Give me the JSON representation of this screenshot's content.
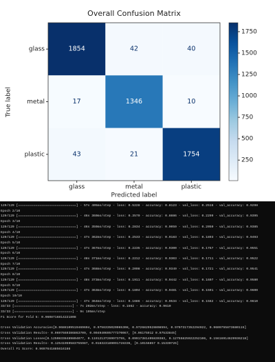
{
  "chart_data": {
    "type": "heatmap",
    "title": "Overall Confusion Matrix",
    "x_label": "Predicted label",
    "y_label": "True label",
    "x_categories": [
      "glass",
      "metal",
      "plastic"
    ],
    "y_categories": [
      "glass",
      "metal",
      "plastic"
    ],
    "values": [
      [
        1854,
        42,
        40
      ],
      [
        17,
        1346,
        10
      ],
      [
        43,
        21,
        1754
      ]
    ],
    "cmap": "Blues",
    "clim": [
      10,
      1854
    ],
    "colorbar_ticks": [
      250,
      500,
      750,
      1000,
      1250,
      1500,
      1750
    ]
  },
  "console": {
    "lines": [
      "129/129 [==============================] - 57s 405ms/step - loss: 0.5228 - accuracy: 0.8123 - val_loss: 0.2516 - val_accuracy: 0.9298",
      "Epoch 2/10",
      "129/129 [==============================] - 46s 360ms/step - loss: 0.3570 - accuracy: 0.8886 - val_loss: 0.2299 - val_accuracy: 0.9395",
      "Epoch 3/10",
      "129/129 [==============================] - 46s 359ms/step - loss: 0.2834 - accuracy: 0.9059 - val_loss: 0.2050 - val_accuracy: 0.9385",
      "Epoch 4/10",
      "129/129 [==============================] - 47s 362ms/step - loss: 0.2533 - accuracy: 0.9183 - val_loss: 0.1893 - val_accuracy: 0.9493",
      "Epoch 5/10",
      "129/129 [==============================] - 47s 367ms/step - loss: 0.2235 - accuracy: 0.9300 - val_loss: 0.1767 - val_accuracy: 0.9551",
      "Epoch 6/10",
      "129/129 [==============================] - 48s 371ms/step - loss: 0.2212 - accuracy: 0.9303 - val_loss: 0.1711 - val_accuracy: 0.9522",
      "Epoch 7/10",
      "129/129 [==============================] - 47s 368ms/step - loss: 0.2008 - accuracy: 0.9349 - val_loss: 0.1721 - val_accuracy: 0.9541",
      "Epoch 8/10",
      "129/129 [==============================] - 48s 373ms/step - loss: 0.1911 - accuracy: 0.9442 - val_loss: 0.1607 - val_accuracy: 0.9580",
      "Epoch 9/10",
      "129/129 [==============================] - 47s 363ms/step - loss: 0.1804 - accuracy: 0.9481 - val_loss: 0.1591 - val_accuracy: 0.9600",
      "Epoch 10/10",
      "129/129 [==============================] - 47s 364ms/step - loss: 0.1686 - accuracy: 0.9534 - val_loss: 0.1562 - val_accuracy: 0.9610",
      "33/33 [==============================] - 7s 202ms/step - loss: 0.1562 - accuracy: 0.9610",
      "33/33 [==============================] - 9s 195ms/step",
      "F1 Score for Fold 5: 0.9608716814221808",
      "Cross Validation Accuracies[0.9688109519469604, 0.9756335020065308, 0.9726829528808594, 0.9707317352294922, 0.9609755873680115]",
      "Cross Validation Results- 0.9697669386863709, 0.004940695777370067, [0.96175912 0.97533845]",
      "Cross Validation Losses[0.12508338489804077, 0.11912137269973755, 0.09917381405830383, 0.12755825922252106, 0.15616914629936218]",
      "Cross Validation Results- 0.12541959583755987, 0.018323189091728336, [0.10156857 0.15330726]",
      "Overall F1 Score: 0.9697641885616166"
    ]
  }
}
